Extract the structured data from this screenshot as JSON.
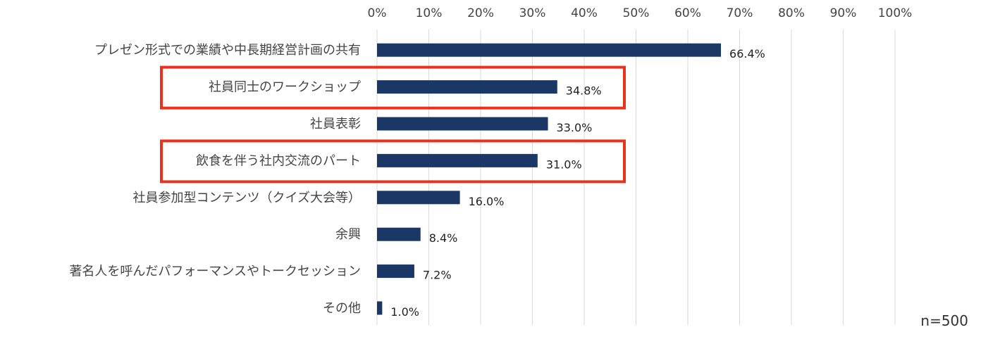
{
  "chart_data": {
    "type": "bar",
    "orientation": "horizontal",
    "categories": [
      "プレゼン形式での業績や中長期経営計画の共有",
      "社員同士のワークショップ",
      "社員表彰",
      "飲食を伴う社内交流のパート",
      "社員参加型コンテンツ（クイズ大会等）",
      "余興",
      "著名人を呼んだパフォーマンスやトークセッション",
      "その他"
    ],
    "values": [
      66.4,
      34.8,
      33.0,
      31.0,
      16.0,
      8.4,
      7.2,
      1.0
    ],
    "value_labels": [
      "66.4%",
      "34.8%",
      "33.0%",
      "31.0%",
      "16.0%",
      "8.4%",
      "7.2%",
      "1.0%"
    ],
    "xlim": [
      0,
      100
    ],
    "xticks": [
      "0%",
      "10%",
      "20%",
      "30%",
      "40%",
      "50%",
      "60%",
      "70%",
      "80%",
      "90%",
      "100%"
    ],
    "x_axis_position": "top",
    "grid": true,
    "highlighted_categories": [
      "社員同士のワークショップ",
      "飲食を伴う社内交流のパート"
    ],
    "note": "n=500"
  },
  "colors": {
    "bar": "#1b3766",
    "grid": "#d9d9d9",
    "highlight_box": "#e8321e"
  }
}
